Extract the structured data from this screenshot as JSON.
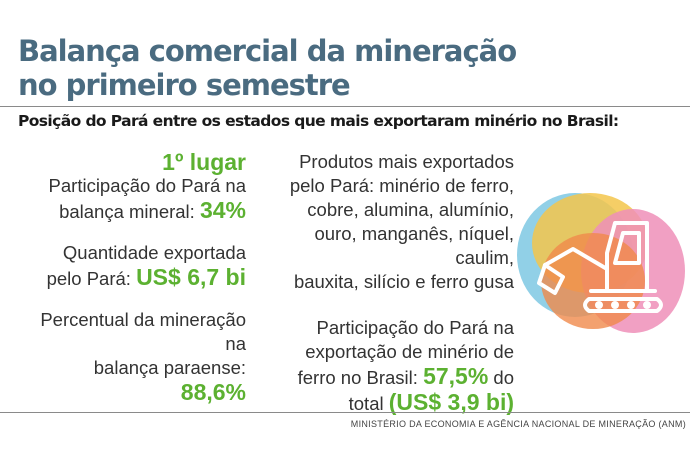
{
  "title": {
    "line1": "Balança comercial da mineração",
    "line2": "no primeiro semestre"
  },
  "subtitle": "Posição do Pará entre os estados que mais exportaram minério no Brasil:",
  "left": {
    "rank": "1º lugar",
    "share_text_line1": "Participação do Pará na",
    "share_text_line2": "balança mineral:",
    "share_value": "34%",
    "qty_text_line1": "Quantidade exportada",
    "qty_text_line2": "pelo Pará:",
    "qty_value": "US$ 6,7 bi",
    "pct_text_line1": "Percentual da mineração na",
    "pct_text_line2": "balança paraense:",
    "pct_value": "88,6%"
  },
  "right": {
    "products_line1": "Produtos mais exportados",
    "products_line2": "pelo Pará: minério de ferro,",
    "products_line3": "cobre, alumina, alumínio,",
    "products_line4": "ouro, manganês, níquel, caulim,",
    "products_line5": "bauxita, silício e ferro gusa",
    "iron_line1": "Participação do Pará na",
    "iron_line2": "exportação de minério de",
    "iron_line3_pre": "ferro no Brasil:",
    "iron_value": "57,5%",
    "iron_line3_post": "do",
    "iron_line4_pre": "total",
    "iron_total": "(US$ 3,9 bi)"
  },
  "source": "MINISTÉRIO DA ECONOMIA E AGÊNCIA NACIONAL DE MINERAÇÃO (ANM)",
  "colors": {
    "title": "#4a6b80",
    "accent_green": "#5cb131",
    "blob_blue": "#7ec8e3",
    "blob_yellow": "#f3c64b",
    "blob_pink": "#ee8fb8",
    "blob_orange": "#f08a4b"
  },
  "icons": {
    "illustration": "excavator-icon"
  }
}
